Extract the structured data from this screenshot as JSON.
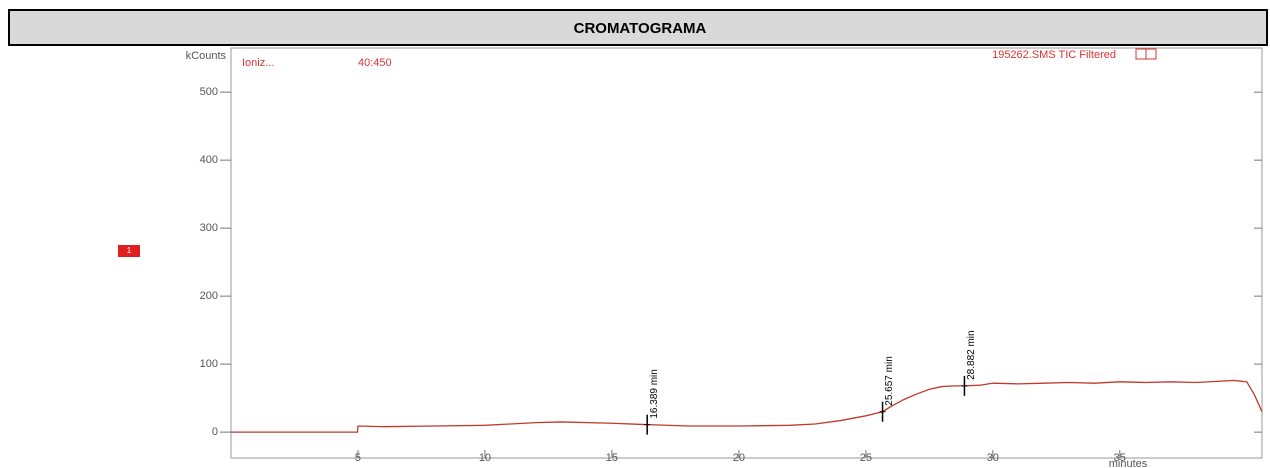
{
  "chart_data": {
    "type": "line",
    "title": "CROMATOGRAMA",
    "y_label": "kCounts",
    "x_label": "minutes",
    "header_left": "Ioniz...",
    "header_range": "40:450",
    "header_right": "195262.SMS TIC Filtered",
    "trace_label": "1",
    "x": [
      0,
      4.98,
      5,
      6,
      8,
      10,
      12,
      13,
      15,
      16.4,
      18,
      20,
      22,
      23,
      24,
      25,
      25.657,
      26,
      26.5,
      27,
      27.5,
      28,
      28.5,
      28.882,
      29.5,
      30,
      31,
      32,
      33,
      34,
      35,
      36,
      37,
      38,
      39,
      39.5,
      40,
      40.3,
      40.6
    ],
    "series": [
      {
        "name": "TIC",
        "color": "#c0392b",
        "values": [
          0,
          0,
          9,
          8,
          9,
          10,
          14,
          15,
          13,
          11,
          9,
          9,
          10,
          12,
          17,
          24,
          30,
          38,
          48,
          56,
          63,
          67,
          68,
          68,
          69,
          72,
          71,
          72,
          73,
          72,
          74,
          73,
          74,
          73,
          75,
          76,
          74,
          55,
          30
        ]
      }
    ],
    "annotations": [
      {
        "x": 16.389,
        "y": 11,
        "label": "16.389 min"
      },
      {
        "x": 25.657,
        "y": 30,
        "label": "25.657 min"
      },
      {
        "x": 28.882,
        "y": 68,
        "label": "28.882 min"
      }
    ],
    "xlim": [
      0,
      40.6
    ],
    "ylim": [
      -41,
      562
    ],
    "xticks": [
      5,
      10,
      15,
      20,
      25,
      30,
      35
    ],
    "yticks": [
      0,
      100,
      200,
      300,
      400,
      500
    ]
  }
}
